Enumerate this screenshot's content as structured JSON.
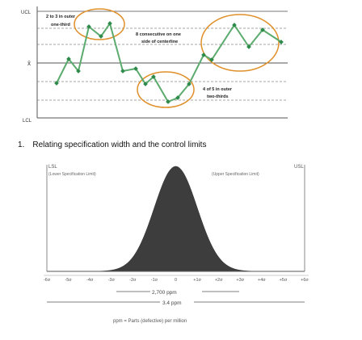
{
  "control_chart": {
    "labels": {
      "ucl": "UCL",
      "center": "x̄",
      "lcl": "LCL"
    },
    "annotations": {
      "rule1_line1": "2 to 3 in outer",
      "rule1_line2": "one-third",
      "rule2_line1": "8 consecutive on one",
      "rule2_line2": "side of centerline",
      "rule3_line1": "4 of 5 in outer",
      "rule3_line2": "two-thirds"
    },
    "colors": {
      "line": "#5cab6e",
      "marker": "#2e8a4a",
      "ellipse": "#e0902a"
    }
  },
  "caption": {
    "number": "1.",
    "text": "Relating specification width and the control limits"
  },
  "normal_curve": {
    "lsl": "LSL",
    "lsl_desc": "(Lower Specification Limit)",
    "usl": "USL",
    "usl_desc": "(Upper Specification Limit)",
    "ticks": [
      "-6σ",
      "-5σ",
      "-4σ",
      "-3σ",
      "-2σ",
      "-1σ",
      "0",
      "+1σ",
      "+2σ",
      "+3σ",
      "+4σ",
      "+5σ",
      "+6σ"
    ],
    "range1": "2,700 ppm",
    "range2": "3.4 ppm",
    "footnote": "ppm = Parts (defective) per million",
    "fill": "#3d3d3d"
  }
}
